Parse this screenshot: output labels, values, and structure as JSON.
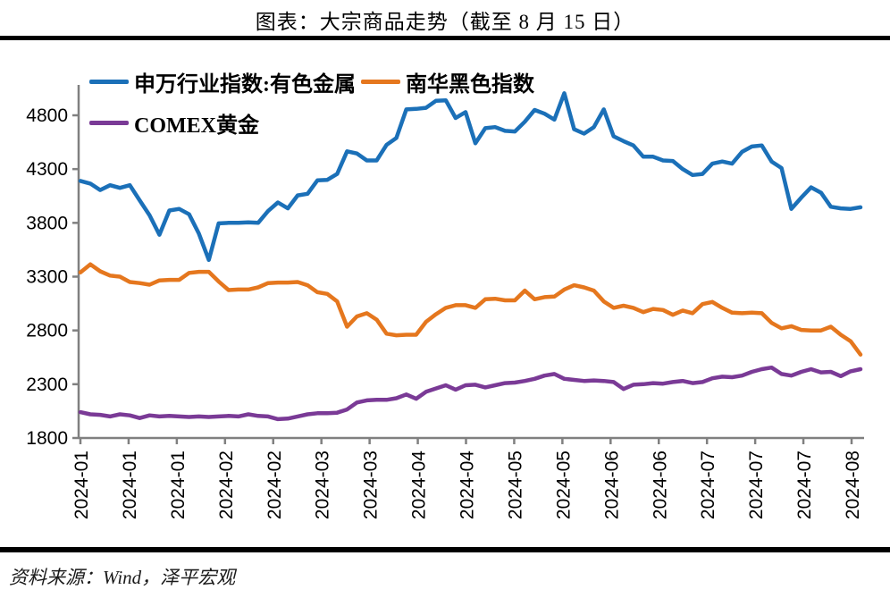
{
  "title": "图表：大宗商品走势（截至 8 月 15 日）",
  "source": "资料来源：Wind，泽平宏观",
  "chart_data": {
    "type": "line",
    "title": "大宗商品走势（截至 8 月 15 日）",
    "xlabel": "",
    "ylabel": "",
    "grid": false,
    "legend_position": "top-left",
    "axis_color": "#808080",
    "y_ticks": [
      1800,
      2300,
      2800,
      3300,
      3800,
      4300,
      4800
    ],
    "ylim": [
      1800,
      5100
    ],
    "x_tick_labels": [
      "2024-01",
      "2024-01",
      "2024-01",
      "2024-02",
      "2024-02",
      "2024-03",
      "2024-03",
      "2024-04",
      "2024-04",
      "2024-05",
      "2024-05",
      "2024-06",
      "2024-06",
      "2024-07",
      "2024-07",
      "2024-07",
      "2024-08"
    ],
    "series": [
      {
        "name": "申万行业指数:有色金属",
        "color": "#1B70B8",
        "values": [
          4190,
          4165,
          4105,
          4150,
          4125,
          4150,
          4010,
          3870,
          3690,
          3915,
          3930,
          3880,
          3700,
          3455,
          3795,
          3800,
          3800,
          3805,
          3800,
          3910,
          3990,
          3935,
          4055,
          4070,
          4195,
          4200,
          4255,
          4465,
          4445,
          4380,
          4380,
          4525,
          4590,
          4855,
          4860,
          4870,
          4935,
          4940,
          4775,
          4830,
          4540,
          4680,
          4690,
          4655,
          4650,
          4740,
          4850,
          4815,
          4760,
          5005,
          4670,
          4630,
          4690,
          4855,
          4605,
          4560,
          4520,
          4415,
          4415,
          4380,
          4375,
          4300,
          4245,
          4255,
          4350,
          4370,
          4350,
          4460,
          4510,
          4520,
          4370,
          4310,
          3930,
          4035,
          4130,
          4080,
          3950,
          3935,
          3930,
          3945
        ]
      },
      {
        "name": "南华黑色指数",
        "color": "#E5771E",
        "values": [
          3340,
          3415,
          3350,
          3310,
          3300,
          3250,
          3240,
          3225,
          3265,
          3270,
          3270,
          3335,
          3345,
          3345,
          3255,
          3175,
          3180,
          3180,
          3200,
          3240,
          3245,
          3245,
          3250,
          3220,
          3155,
          3140,
          3070,
          2835,
          2930,
          2960,
          2900,
          2770,
          2755,
          2760,
          2760,
          2880,
          2950,
          3010,
          3035,
          3035,
          3010,
          3090,
          3095,
          3080,
          3080,
          3170,
          3090,
          3110,
          3115,
          3180,
          3220,
          3200,
          3170,
          3070,
          3010,
          3030,
          3010,
          2970,
          3000,
          2990,
          2945,
          2985,
          2960,
          3045,
          3065,
          3010,
          2965,
          2960,
          2965,
          2960,
          2870,
          2820,
          2840,
          2805,
          2800,
          2800,
          2835,
          2760,
          2700,
          2575
        ]
      },
      {
        "name": "COMEX黄金",
        "color": "#7A3A96",
        "values": [
          2040,
          2020,
          2015,
          2000,
          2020,
          2010,
          1985,
          2010,
          2000,
          2005,
          2000,
          1995,
          2000,
          1995,
          2000,
          2005,
          2000,
          2020,
          2005,
          2000,
          1975,
          1980,
          2000,
          2020,
          2030,
          2030,
          2035,
          2065,
          2130,
          2150,
          2155,
          2155,
          2170,
          2205,
          2165,
          2230,
          2260,
          2290,
          2250,
          2290,
          2295,
          2270,
          2290,
          2310,
          2315,
          2330,
          2350,
          2380,
          2395,
          2350,
          2340,
          2330,
          2335,
          2330,
          2320,
          2255,
          2295,
          2300,
          2310,
          2305,
          2320,
          2330,
          2310,
          2320,
          2355,
          2370,
          2365,
          2380,
          2415,
          2440,
          2455,
          2395,
          2380,
          2415,
          2440,
          2410,
          2415,
          2375,
          2420,
          2440
        ]
      }
    ]
  }
}
